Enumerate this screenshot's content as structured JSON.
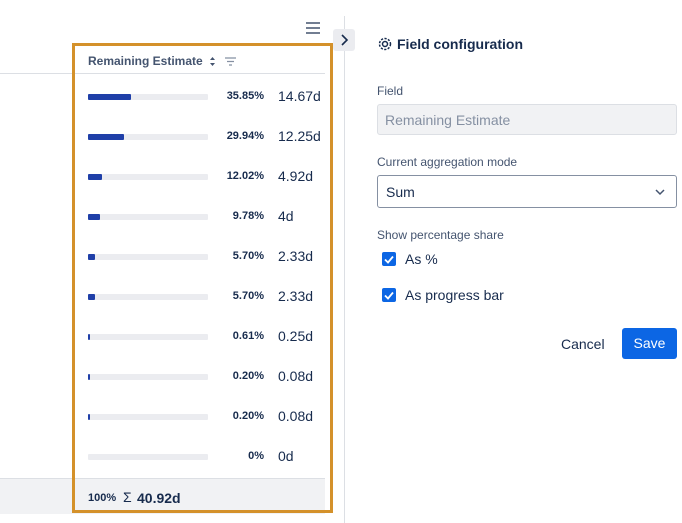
{
  "table": {
    "column_header": "Remaining Estimate",
    "rows": [
      {
        "share": 35.85,
        "share_label": "35.85%",
        "estimate": "14.67d"
      },
      {
        "share": 29.94,
        "share_label": "29.94%",
        "estimate": "12.25d"
      },
      {
        "share": 12.02,
        "share_label": "12.02%",
        "estimate": "4.92d"
      },
      {
        "share": 9.78,
        "share_label": "9.78%",
        "estimate": "4d"
      },
      {
        "share": 5.7,
        "share_label": "5.70%",
        "estimate": "2.33d"
      },
      {
        "share": 5.7,
        "share_label": "5.70%",
        "estimate": "2.33d"
      },
      {
        "share": 0.61,
        "share_label": "0.61%",
        "estimate": "0.25d"
      },
      {
        "share": 0.2,
        "share_label": "0.20%",
        "estimate": "0.08d"
      },
      {
        "share": 0.2,
        "share_label": "0.20%",
        "estimate": "0.08d"
      },
      {
        "share": 0,
        "share_label": "0%",
        "estimate": "0d"
      }
    ],
    "footer": {
      "share_label": "100%",
      "symbol": "Σ",
      "total": "40.92d"
    }
  },
  "panel": {
    "title": "Field configuration",
    "field_label": "Field",
    "field_value": "Remaining Estimate",
    "mode_label": "Current aggregation mode",
    "mode_value": "Sum",
    "share_label": "Show percentage share",
    "options": [
      {
        "label": "As %",
        "checked": true
      },
      {
        "label": "As progress bar",
        "checked": true
      }
    ],
    "cancel": "Cancel",
    "save": "Save"
  }
}
